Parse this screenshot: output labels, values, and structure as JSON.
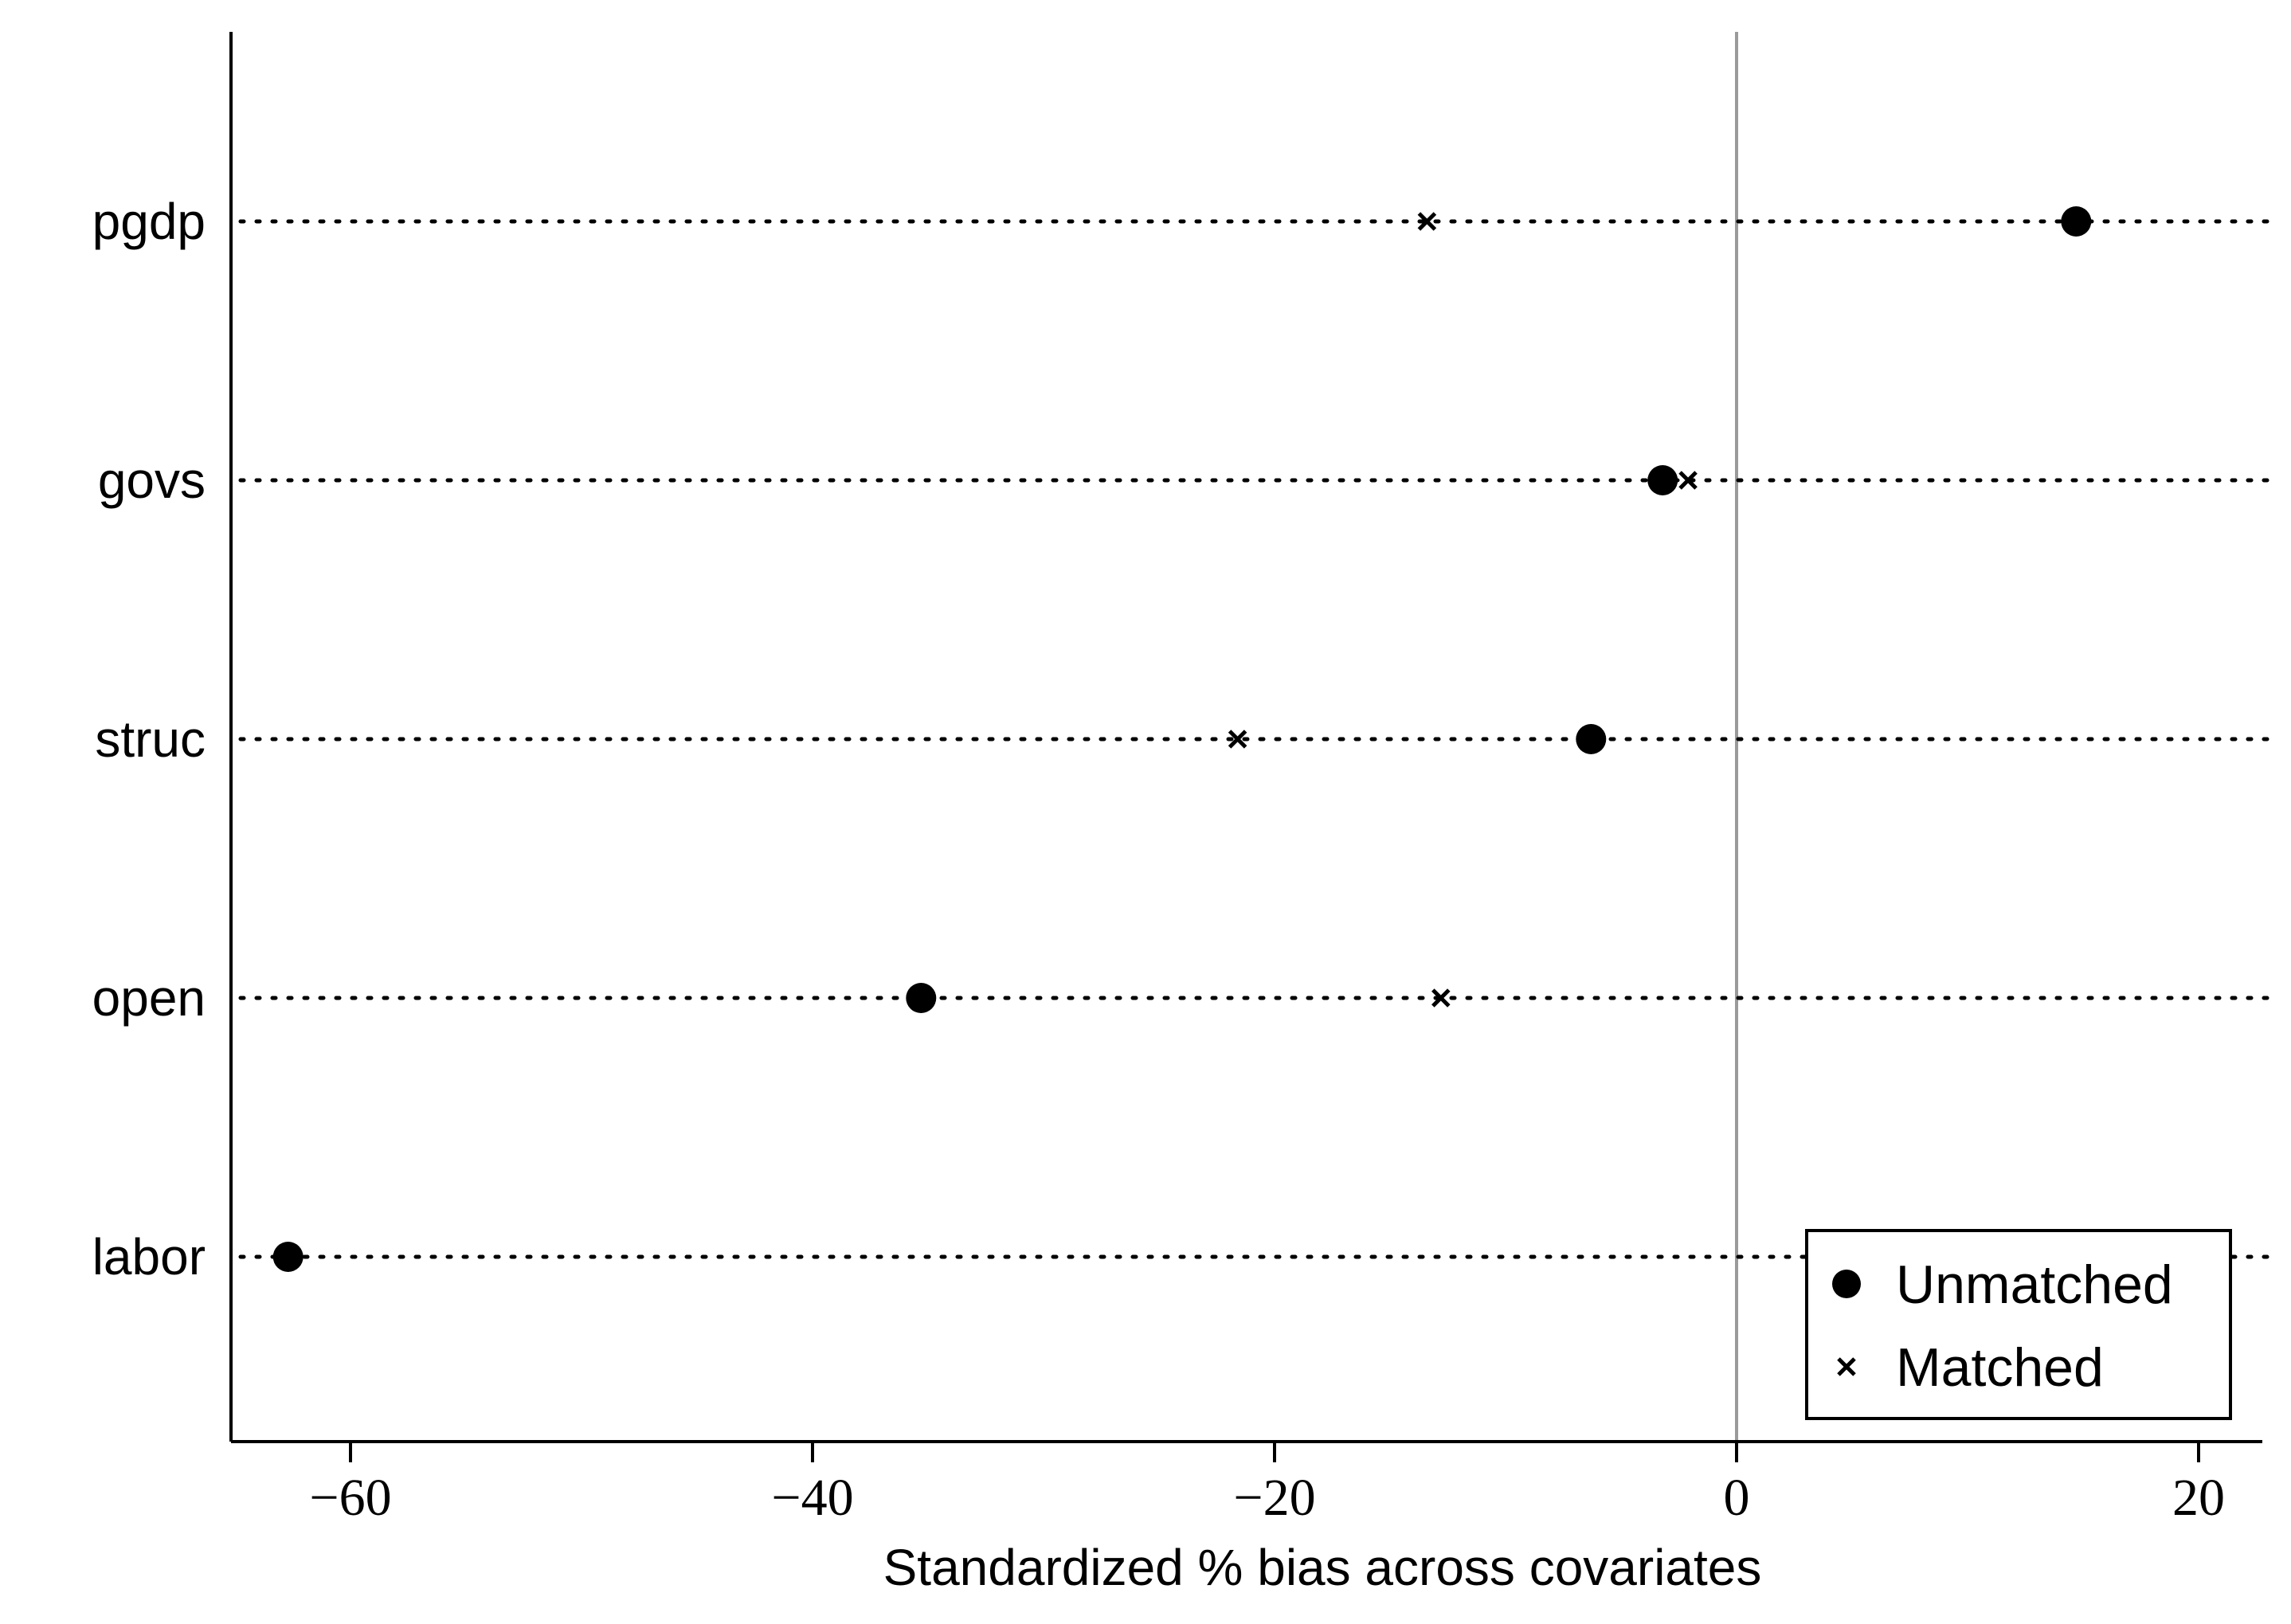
{
  "chart_data": {
    "type": "scatter",
    "orientation": "horizontal-dot-plot",
    "title": "",
    "xlabel": "Standardized % bias across covariates",
    "ylabel": "",
    "xlim": [
      -65,
      23
    ],
    "x_ticks": [
      -60,
      -40,
      -20,
      0,
      20
    ],
    "x_tick_labels": [
      "−60",
      "−40",
      "−20",
      "0",
      "20"
    ],
    "categories": [
      "pgdp",
      "govs",
      "struc",
      "open",
      "labor"
    ],
    "series": [
      {
        "name": "Unmatched",
        "marker": "filled-circle",
        "values": [
          14.7,
          -3.2,
          -6.3,
          -35.3,
          -62.7
        ]
      },
      {
        "name": "Matched",
        "marker": "x",
        "values": [
          -13.4,
          -2.1,
          -21.6,
          -12.8,
          null
        ]
      }
    ],
    "reference_line_x": 0,
    "row_lines": "dotted",
    "grid": false,
    "legend_position": "bottom-right",
    "colors": {
      "markers": "#000000",
      "reference_line": "#9a9a9a",
      "axis": "#000000"
    }
  }
}
